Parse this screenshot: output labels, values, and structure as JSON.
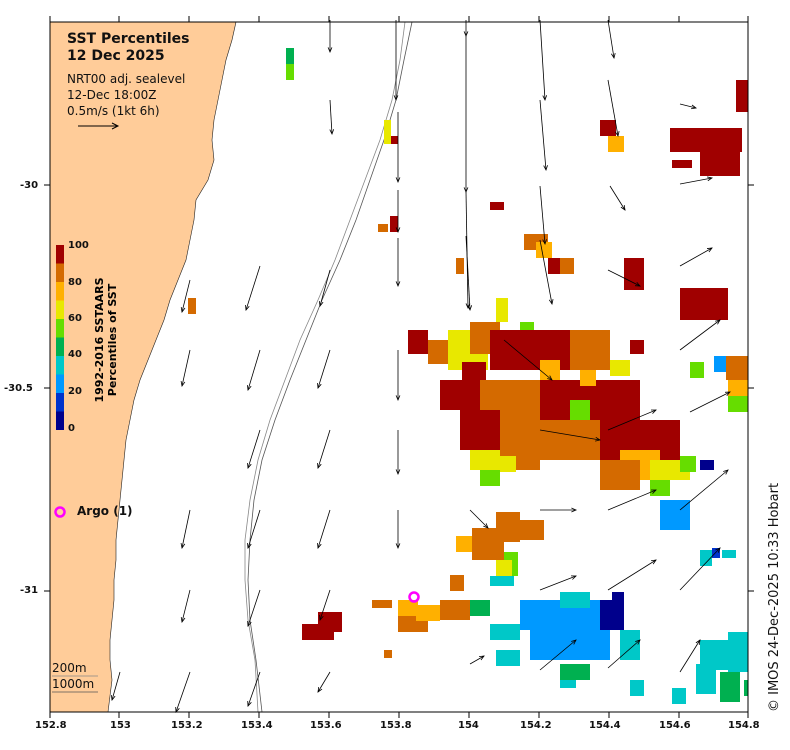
{
  "header": {
    "title": "SST Percentiles",
    "date": "12 Dec 2025",
    "product": "NRT00 adj. sealevel",
    "time": "12-Dec 18:00Z",
    "scale_text": "0.5m/s (1kt 6h)"
  },
  "colorbar": {
    "axis_label_line1": "1992-2016 SSTAARS",
    "axis_label_line2": "Percentiles of SST",
    "ticks": [
      "100",
      "80",
      "60",
      "40",
      "20",
      "0"
    ],
    "colors": [
      "#00008c",
      "#0033cc",
      "#0099ff",
      "#00c8c8",
      "#00b050",
      "#66dd00",
      "#e8e800",
      "#ffb000",
      "#d46a00",
      "#a00000"
    ]
  },
  "legend": {
    "argo_label": "Argo (1)",
    "argo_symbol": "o",
    "argo_color": "#ff00ff"
  },
  "isobaths": {
    "label_200": "200m",
    "label_1000": "1000m"
  },
  "axes": {
    "x_ticks": [
      "152.8",
      "153",
      "153.2",
      "153.4",
      "153.6",
      "153.8",
      "154",
      "154.2",
      "154.4",
      "154.6",
      "154.8"
    ],
    "y_ticks": [
      "-30",
      "-30.5",
      "-31"
    ]
  },
  "credit": "© IMOS 24-Dec-2025 10:33 Hobart",
  "colors": {
    "land": "#ffcc99",
    "ocean": "#ffffff",
    "argo": "#ff00ff"
  }
}
